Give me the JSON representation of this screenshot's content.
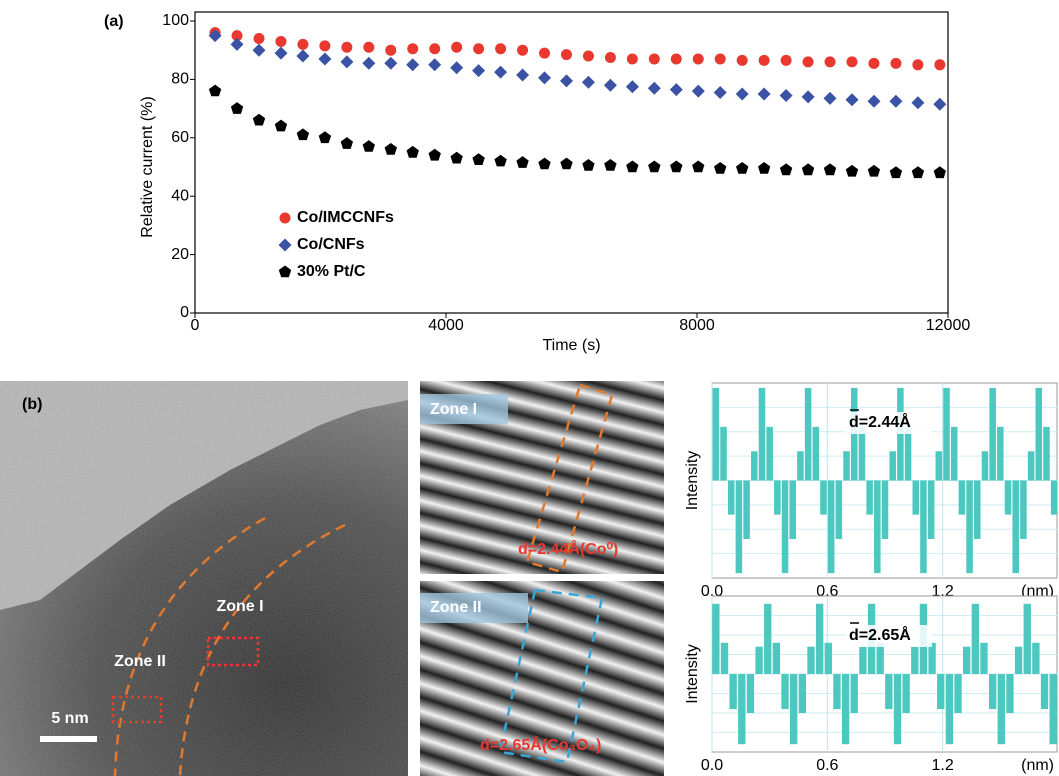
{
  "chart_data": [
    {
      "type": "scatter",
      "panel_label": "(a)",
      "xlabel": "Time (s)",
      "ylabel": "Relative current (%)",
      "xlim": [
        0,
        12000
      ],
      "xticks": [
        0,
        4000,
        8000,
        12000
      ],
      "ylim": [
        0,
        100
      ],
      "yticks": [
        0,
        20,
        40,
        60,
        80,
        100
      ],
      "legend": "lower left",
      "x": [
        320,
        670,
        1020,
        1370,
        1720,
        2070,
        2420,
        2770,
        3120,
        3470,
        3820,
        4170,
        4520,
        4870,
        5220,
        5570,
        5920,
        6270,
        6620,
        6970,
        7320,
        7670,
        8020,
        8370,
        8720,
        9070,
        9420,
        9770,
        10120,
        10470,
        10820,
        11170,
        11520,
        11870
      ],
      "series": [
        {
          "name": "Co/IMCCNFs",
          "color": "#e8382f",
          "marker": "circle",
          "values": [
            96,
            95,
            94,
            93,
            92,
            91.5,
            91,
            91,
            90,
            90.5,
            90.5,
            91,
            90.5,
            90.5,
            90,
            89,
            88.5,
            88,
            87.5,
            87,
            87,
            87,
            87,
            87,
            86.5,
            86.5,
            86.5,
            86,
            86,
            86,
            85.5,
            85.5,
            85,
            85
          ]
        },
        {
          "name": "Co/CNFs",
          "color": "#3a53a4",
          "marker": "diamond",
          "values": [
            95,
            92,
            90,
            89,
            88,
            87,
            86,
            85.5,
            85.5,
            85,
            85,
            84,
            83,
            82.5,
            81.5,
            80.5,
            79.5,
            79,
            78,
            77.5,
            77,
            76.5,
            76,
            75.5,
            75,
            75,
            74.5,
            74,
            73.5,
            73,
            72.5,
            72.5,
            72,
            71.5
          ]
        },
        {
          "name": "30% Pt/C",
          "color": "#000000",
          "marker": "pentagon",
          "values": [
            76,
            70,
            66,
            64,
            61,
            60,
            58,
            57,
            56,
            55,
            54,
            53,
            52.5,
            52,
            51.5,
            51,
            51,
            50.5,
            50.5,
            50,
            50,
            50,
            50,
            49.5,
            49.5,
            49.5,
            49,
            49,
            49,
            48.5,
            48.5,
            48,
            48,
            48
          ]
        }
      ]
    },
    {
      "type": "profile",
      "ylabel": "Intensity",
      "xlabel": "(nm)",
      "annotation": "d=2.44Å",
      "color": "#4cc8c0",
      "xlim": [
        0,
        1.8
      ],
      "xticks": [
        {
          "value": 0,
          "label": "0.0"
        },
        0.6,
        1.2
      ],
      "ylim": [
        -1,
        1
      ],
      "x": [
        0.02,
        0.06,
        0.1,
        0.14,
        0.18,
        0.22,
        0.26,
        0.3,
        0.34,
        0.38,
        0.42,
        0.46,
        0.5,
        0.54,
        0.58,
        0.62,
        0.66,
        0.7,
        0.74,
        0.78,
        0.82,
        0.86,
        0.9,
        0.94,
        0.98,
        1.02,
        1.06,
        1.1,
        1.14,
        1.18,
        1.22,
        1.26,
        1.3,
        1.34,
        1.38,
        1.42,
        1.46,
        1.5,
        1.54,
        1.58,
        1.62,
        1.66,
        1.7,
        1.74,
        1.78
      ],
      "values": [
        0.95,
        0.55,
        -0.35,
        -0.95,
        -0.6,
        0.3,
        0.95,
        0.55,
        -0.35,
        -0.95,
        -0.6,
        0.3,
        0.95,
        0.55,
        -0.35,
        -0.95,
        -0.6,
        0.3,
        0.95,
        0.55,
        -0.35,
        -0.95,
        -0.6,
        0.3,
        0.95,
        0.55,
        -0.35,
        -0.95,
        -0.6,
        0.3,
        0.95,
        0.55,
        -0.35,
        -0.95,
        -0.6,
        0.3,
        0.95,
        0.55,
        -0.35,
        -0.95,
        -0.6,
        0.3,
        0.95,
        0.55,
        -0.35
      ]
    },
    {
      "type": "profile",
      "ylabel": "Intensity",
      "xlabel": "(nm)",
      "annotation": "d=2.65Å",
      "color": "#4cc8c0",
      "xlim": [
        0,
        1.8
      ],
      "xticks": [
        {
          "value": 0,
          "label": "0.0"
        },
        0.6,
        1.2
      ],
      "ylim": [
        -1,
        1
      ],
      "x": [
        0.02,
        0.065,
        0.11,
        0.155,
        0.2,
        0.245,
        0.29,
        0.335,
        0.38,
        0.425,
        0.47,
        0.515,
        0.56,
        0.605,
        0.65,
        0.695,
        0.74,
        0.785,
        0.83,
        0.875,
        0.92,
        0.965,
        1.01,
        1.055,
        1.1,
        1.145,
        1.19,
        1.235,
        1.28,
        1.325,
        1.37,
        1.415,
        1.46,
        1.505,
        1.55,
        1.595,
        1.64,
        1.685,
        1.73,
        1.775
      ],
      "values": [
        0.9,
        0.4,
        -0.45,
        -0.9,
        -0.5,
        0.35,
        0.9,
        0.4,
        -0.45,
        -0.9,
        -0.5,
        0.35,
        0.9,
        0.4,
        -0.45,
        -0.9,
        -0.5,
        0.35,
        0.9,
        0.4,
        -0.45,
        -0.9,
        -0.5,
        0.35,
        0.9,
        0.4,
        -0.45,
        -0.9,
        -0.5,
        0.35,
        0.9,
        0.4,
        -0.45,
        -0.9,
        -0.5,
        0.35,
        0.9,
        0.4,
        -0.45,
        -0.9
      ]
    }
  ],
  "panel_b": {
    "label": "(b)",
    "zone_labels": [
      "Zone I",
      "Zone II"
    ],
    "scale_bar": "5 nm",
    "insets": [
      {
        "zone": "Zone I",
        "spacing": "d=2.44Å(Co⁰)"
      },
      {
        "zone": "Zone II",
        "spacing": "d=2.65Å(Co₃O₄)"
      }
    ]
  }
}
